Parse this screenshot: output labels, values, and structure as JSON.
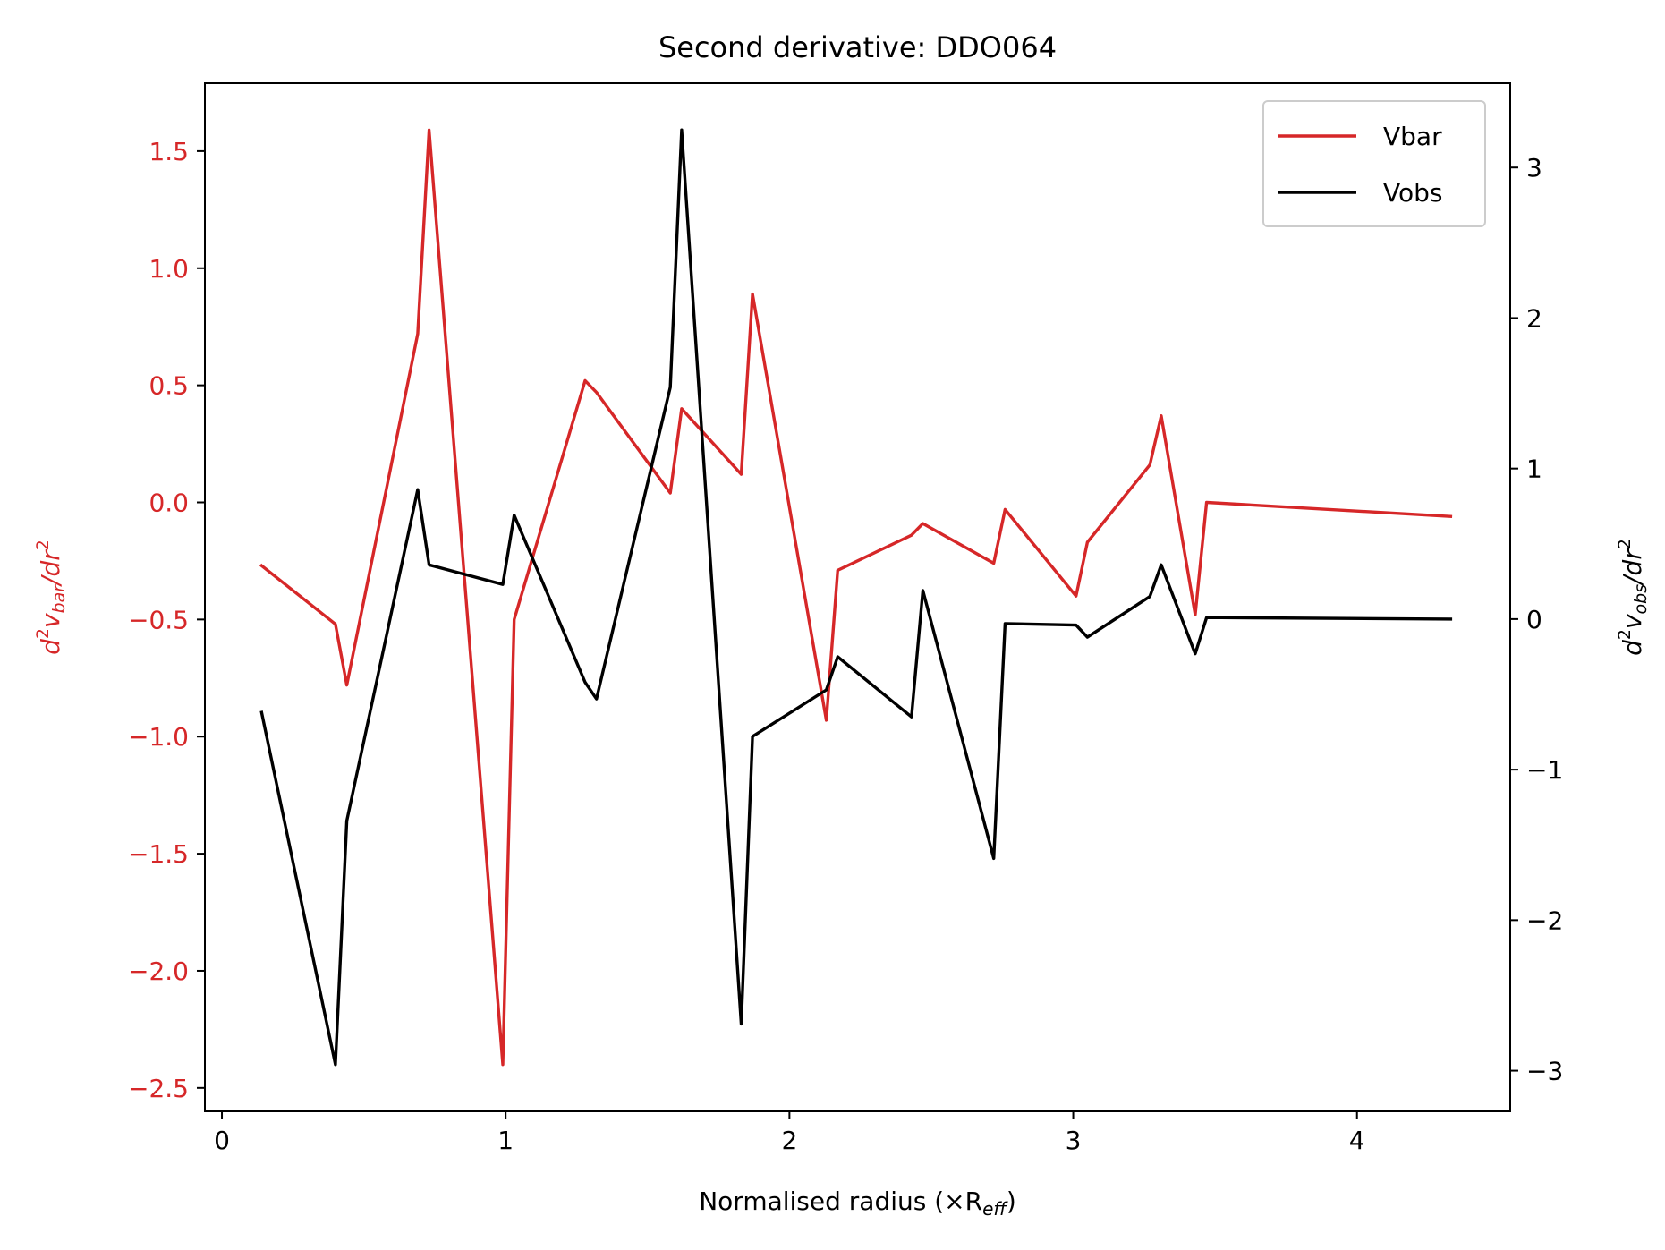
{
  "chart_data": {
    "type": "line",
    "title": "Second derivative: DDO064",
    "xlabel": "Normalised radius (×R",
    "xlabel_sub": "eff",
    "xlabel_close": ")",
    "ylabel_left": {
      "d": "d",
      "sup": "2",
      "v": "v",
      "sub": "bar",
      "tail": "/dr",
      "tail_sup": "2"
    },
    "ylabel_right": {
      "d": "d",
      "sup": "2",
      "v": "v",
      "sub": "obs",
      "tail": "/dr",
      "tail_sup": "2"
    },
    "xlim": [
      -0.06,
      4.54
    ],
    "ylim_left": [
      -2.6,
      1.79
    ],
    "ylim_right": [
      -3.27,
      3.56
    ],
    "xticks": [
      0,
      1,
      2,
      3,
      4
    ],
    "xtick_labels": [
      "0",
      "1",
      "2",
      "3",
      "4"
    ],
    "yticks_left": [
      -2.5,
      -2.0,
      -1.5,
      -1.0,
      -0.5,
      0.0,
      0.5,
      1.0,
      1.5
    ],
    "ytick_labels_left": [
      "−2.5",
      "−2.0",
      "−1.5",
      "−1.0",
      "−0.5",
      "0.0",
      "0.5",
      "1.0",
      "1.5"
    ],
    "yticks_right": [
      -3,
      -2,
      -1,
      0,
      1,
      2,
      3
    ],
    "ytick_labels_right": [
      "−3",
      "−2",
      "−1",
      "0",
      "1",
      "2",
      "3"
    ],
    "legend_position": "top-right",
    "colors": {
      "vbar": "#d62728",
      "vobs": "#000000",
      "left_axis": "#d62728",
      "right_axis": "#000000"
    },
    "series": [
      {
        "name": "Vbar",
        "axis": "left",
        "color": "#d62728",
        "x": [
          0.14,
          0.4,
          0.44,
          0.69,
          0.73,
          0.99,
          1.03,
          1.28,
          1.32,
          1.58,
          1.62,
          1.83,
          1.87,
          2.13,
          2.17,
          2.43,
          2.47,
          2.72,
          2.76,
          3.01,
          3.05,
          3.27,
          3.31,
          3.43,
          3.47,
          4.33
        ],
        "y": [
          -0.27,
          -0.52,
          -0.78,
          0.72,
          1.59,
          -2.4,
          -0.5,
          0.52,
          0.47,
          0.04,
          0.4,
          0.12,
          0.89,
          -0.93,
          -0.29,
          -0.14,
          -0.09,
          -0.26,
          -0.03,
          -0.4,
          -0.17,
          0.16,
          0.37,
          -0.48,
          0.0,
          -0.06
        ]
      },
      {
        "name": "Vobs",
        "axis": "right",
        "color": "#000000",
        "x": [
          0.14,
          0.4,
          0.44,
          0.69,
          0.73,
          0.99,
          1.03,
          1.28,
          1.32,
          1.58,
          1.62,
          1.83,
          1.87,
          2.13,
          2.17,
          2.43,
          2.47,
          2.72,
          2.76,
          3.01,
          3.05,
          3.27,
          3.31,
          3.43,
          3.47,
          4.33
        ],
        "y": [
          -0.62,
          -2.96,
          -1.34,
          0.86,
          0.36,
          0.23,
          0.69,
          -0.42,
          -0.53,
          1.54,
          3.25,
          -2.69,
          -0.78,
          -0.47,
          -0.25,
          -0.65,
          0.19,
          -1.59,
          -0.03,
          -0.04,
          -0.12,
          0.15,
          0.36,
          -0.23,
          0.01,
          0.0
        ]
      }
    ]
  }
}
